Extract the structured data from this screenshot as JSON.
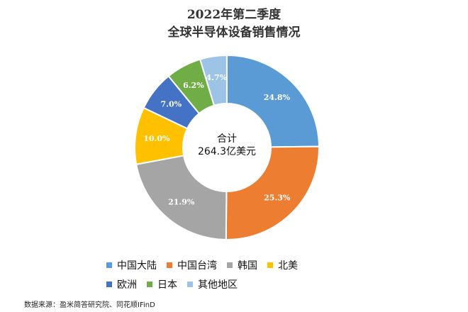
{
  "chart_data": {
    "type": "donut",
    "title_line1": "2022年第二季度",
    "title_line2": "全球半导体设备销售情况",
    "center_label_line1": "合计",
    "center_label_line2": "264.3亿美元",
    "slices": [
      {
        "name": "中国大陆",
        "value": 24.8,
        "label": "24.8%",
        "color": "#5B9BD5"
      },
      {
        "name": "中国台湾",
        "value": 25.3,
        "label": "25.3%",
        "color": "#ED7D31"
      },
      {
        "name": "韩国",
        "value": 21.9,
        "label": "21.9%",
        "color": "#A5A5A5"
      },
      {
        "name": "北美",
        "value": 10.0,
        "label": "10.0%",
        "color": "#FFC000"
      },
      {
        "name": "欧洲",
        "value": 7.0,
        "label": "7.0%",
        "color": "#4472C4"
      },
      {
        "name": "日本",
        "value": 6.2,
        "label": "6.2%",
        "color": "#70AD47"
      },
      {
        "name": "其他地区",
        "value": 4.7,
        "label": "4.7%",
        "color": "#9DC3E6"
      }
    ],
    "legend_position": "bottom"
  },
  "source": "数据来源：盈米简答研究院、同花顺IFinD"
}
